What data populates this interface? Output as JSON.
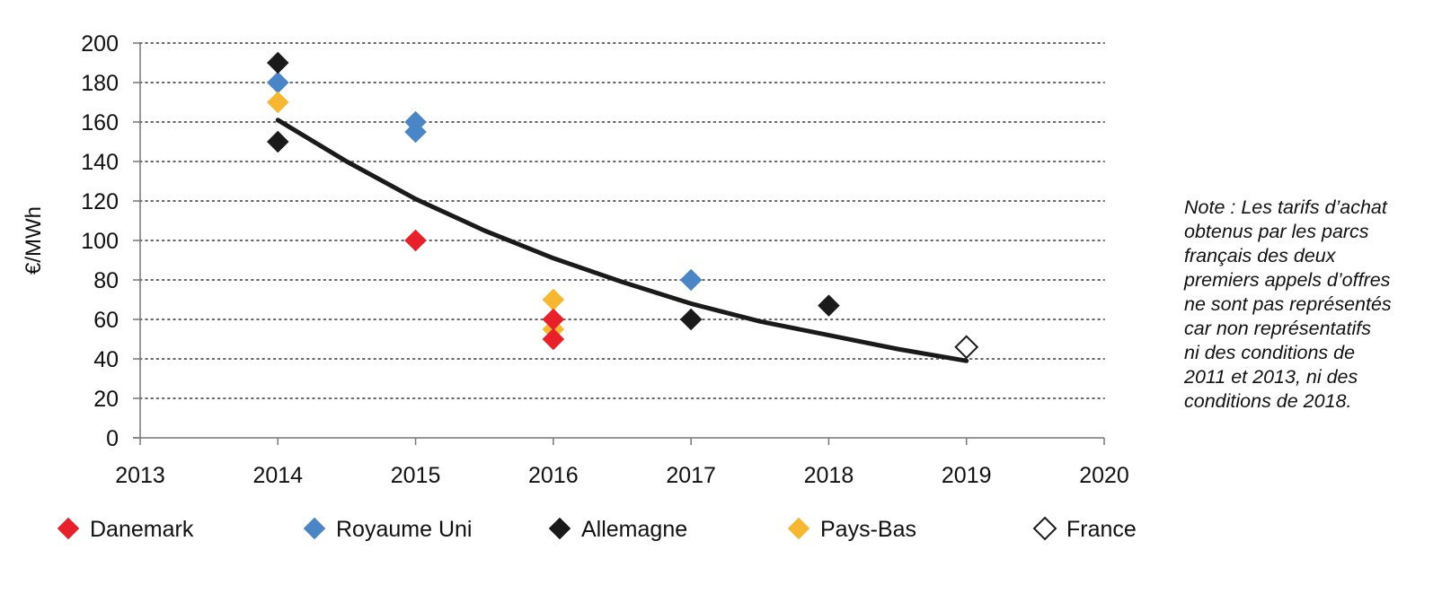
{
  "chart_data": {
    "type": "scatter",
    "title": "",
    "xlabel": "",
    "ylabel": "€/MWh",
    "xlim": [
      2013,
      2020
    ],
    "ylim": [
      0,
      200
    ],
    "x_ticks": [
      2013,
      2014,
      2015,
      2016,
      2017,
      2018,
      2019,
      2020
    ],
    "y_ticks": [
      0,
      20,
      40,
      60,
      80,
      100,
      120,
      140,
      160,
      180,
      200
    ],
    "grid": "horizontal dotted",
    "legend_position": "bottom",
    "series": [
      {
        "name": "Danemark",
        "color": "#e8202a",
        "marker": "diamond-filled",
        "points": [
          {
            "x": 2015,
            "y": 100
          },
          {
            "x": 2016,
            "y": 60
          },
          {
            "x": 2016,
            "y": 50
          }
        ]
      },
      {
        "name": "Royaume Uni",
        "color": "#4a86c5",
        "marker": "diamond-filled",
        "points": [
          {
            "x": 2014,
            "y": 180
          },
          {
            "x": 2015,
            "y": 160
          },
          {
            "x": 2015,
            "y": 155
          },
          {
            "x": 2017,
            "y": 80
          }
        ]
      },
      {
        "name": "Allemagne",
        "color": "#1a1a1a",
        "marker": "diamond-filled",
        "points": [
          {
            "x": 2014,
            "y": 190
          },
          {
            "x": 2014,
            "y": 150
          },
          {
            "x": 2017,
            "y": 60
          },
          {
            "x": 2018,
            "y": 67
          }
        ]
      },
      {
        "name": "Pays-Bas",
        "color": "#f6b731",
        "marker": "diamond-filled",
        "points": [
          {
            "x": 2014,
            "y": 170
          },
          {
            "x": 2016,
            "y": 70
          },
          {
            "x": 2016,
            "y": 55
          }
        ]
      },
      {
        "name": "France",
        "color": "#1a1a1a",
        "marker": "diamond-open",
        "points": [
          {
            "x": 2019,
            "y": 46
          }
        ]
      }
    ],
    "trendline": {
      "type": "exponential",
      "color": "#1a1a1a",
      "points": [
        {
          "x": 2014,
          "y": 161
        },
        {
          "x": 2014.5,
          "y": 140
        },
        {
          "x": 2015,
          "y": 121
        },
        {
          "x": 2015.5,
          "y": 105
        },
        {
          "x": 2016,
          "y": 91
        },
        {
          "x": 2016.5,
          "y": 79
        },
        {
          "x": 2017,
          "y": 68
        },
        {
          "x": 2017.5,
          "y": 59
        },
        {
          "x": 2018,
          "y": 52
        },
        {
          "x": 2018.5,
          "y": 45
        },
        {
          "x": 2019,
          "y": 39
        }
      ]
    },
    "note": "Note : Les tarifs d’achat\nobtenus par les parcs\nfrançais des deux\npremiers appels d’offres\nne sont pas représentés\ncar non représentatifs\nni des conditions de\n2011 et 2013, ni des\nconditions de 2018."
  }
}
